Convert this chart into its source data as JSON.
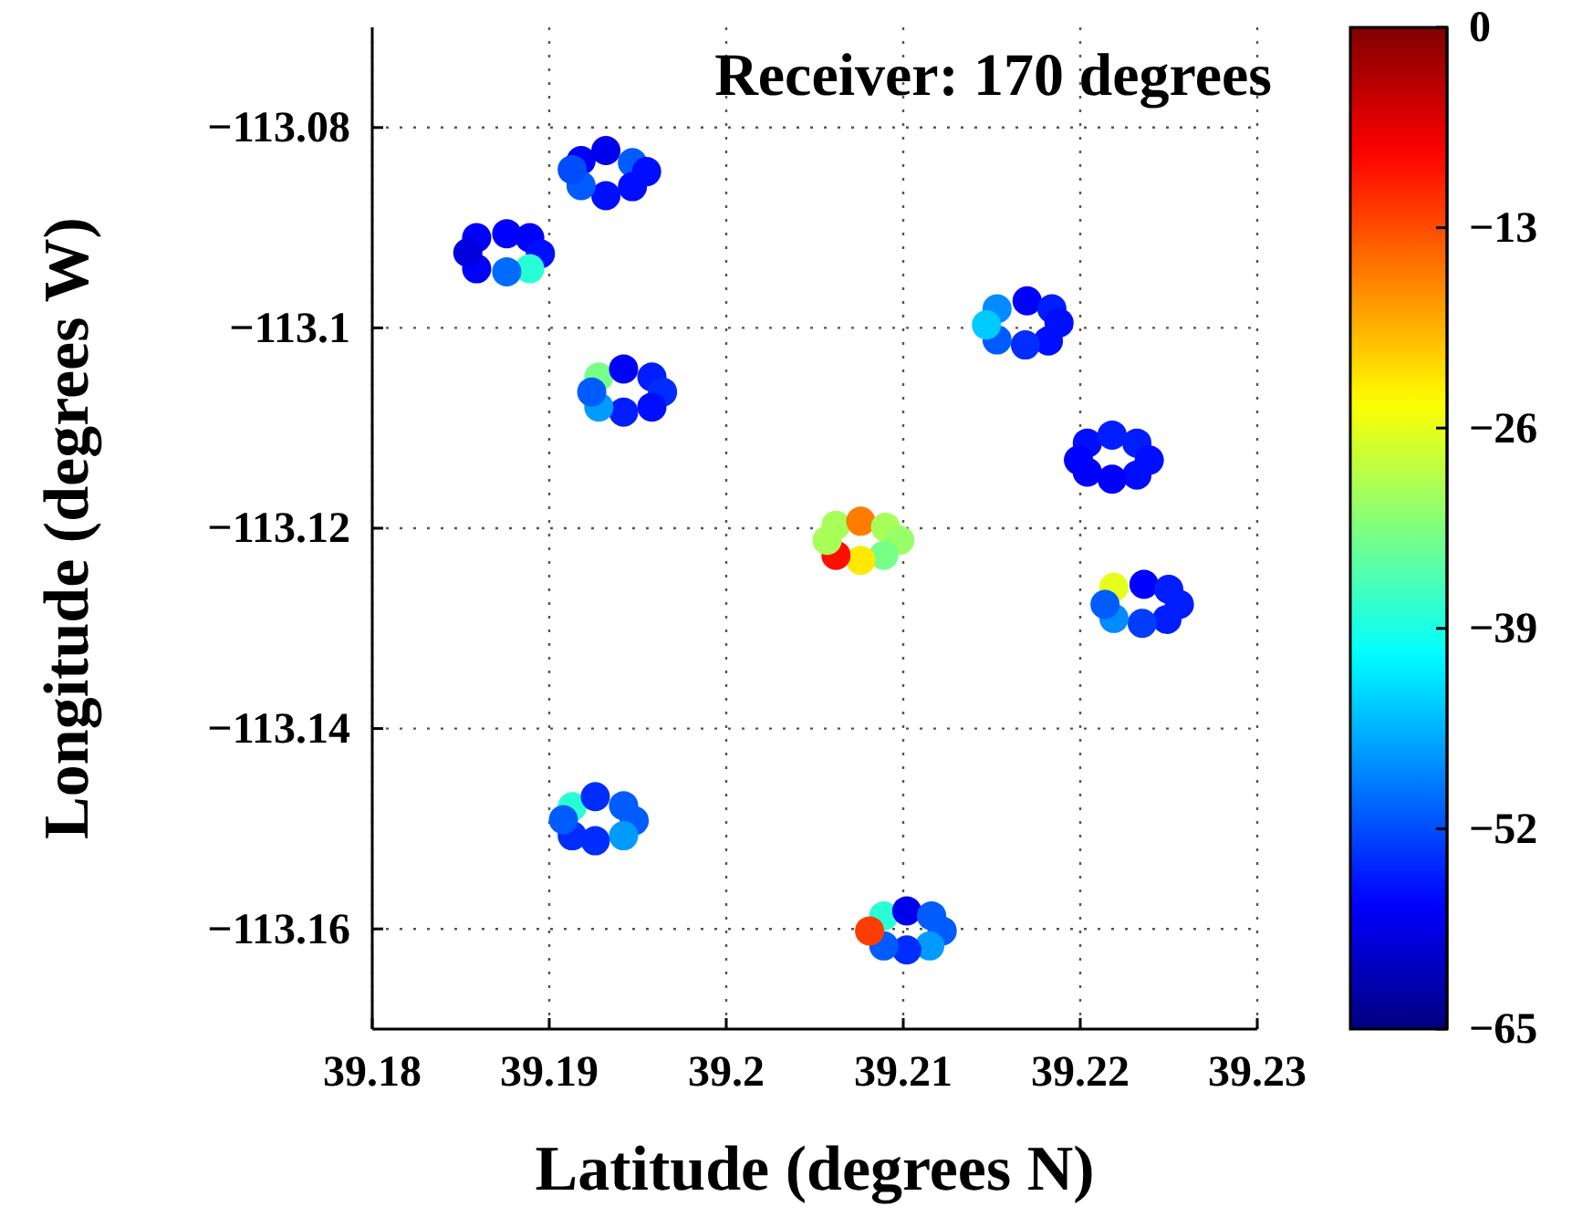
{
  "chart_data": {
    "type": "scatter",
    "title": "Receiver: 170 degrees",
    "xlabel": "Latitude (degrees N)",
    "ylabel": "Longitude (degrees W)",
    "x": [
      39.1918,
      39.1932,
      39.1947,
      39.1955,
      39.1947,
      39.1932,
      39.1918,
      39.1913,
      39.1859,
      39.1876,
      39.1889,
      39.1895,
      39.1889,
      39.1876,
      39.1859,
      39.1854,
      39.1928,
      39.1942,
      39.1958,
      39.1964,
      39.1958,
      39.1942,
      39.1928,
      39.1924,
      39.2153,
      39.217,
      39.2184,
      39.2188,
      39.2182,
      39.2169,
      39.2153,
      39.2147,
      39.2204,
      39.2218,
      39.2232,
      39.2239,
      39.2232,
      39.2218,
      39.2204,
      39.2199,
      39.2219,
      39.2236,
      39.225,
      39.2256,
      39.2249,
      39.2235,
      39.2219,
      39.2214,
      39.2062,
      39.2076,
      39.209,
      39.2098,
      39.2089,
      39.2076,
      39.2062,
      39.2057,
      39.1913,
      39.1926,
      39.1942,
      39.1948,
      39.1942,
      39.1926,
      39.1913,
      39.1908,
      39.2089,
      39.2102,
      39.2116,
      39.2122,
      39.2115,
      39.2102,
      39.2089,
      39.2081
    ],
    "values": [
      -113.0833,
      -113.0823,
      -113.0835,
      -113.0844,
      -113.0859,
      -113.0868,
      -113.0858,
      -113.0842,
      -113.091,
      -113.0906,
      -113.091,
      -113.0926,
      -113.0941,
      -113.0944,
      -113.0941,
      -113.0925,
      -113.1049,
      -113.1041,
      -113.1049,
      -113.1064,
      -113.1079,
      -113.1084,
      -113.1079,
      -113.1064,
      -113.0981,
      -113.0973,
      -113.0981,
      -113.0995,
      -113.1013,
      -113.1017,
      -113.1012,
      -113.0997,
      -113.1115,
      -113.1107,
      -113.1115,
      -113.1132,
      -113.1147,
      -113.1151,
      -113.1144,
      -113.1132,
      -113.1259,
      -113.1256,
      -113.1261,
      -113.1276,
      -113.1291,
      -113.1295,
      -113.129,
      -113.1276,
      -113.1197,
      -113.1193,
      -113.1199,
      -113.1212,
      -113.1227,
      -113.1232,
      -113.1227,
      -113.1212,
      -113.1478,
      -113.1468,
      -113.1477,
      -113.1492,
      -113.1507,
      -113.1512,
      -113.1507,
      -113.1491,
      -113.1587,
      -113.1582,
      -113.1587,
      -113.1602,
      -113.1617,
      -113.1621,
      -113.1617,
      -113.1602
    ],
    "cvalues": [
      -57,
      -58,
      -51,
      -56,
      -56,
      -56,
      -51,
      -52,
      -57,
      -57,
      -57,
      -56,
      -38,
      -50,
      -57,
      -59,
      -33,
      -57,
      -55,
      -54,
      -56,
      -55,
      -47,
      -51,
      -48,
      -57,
      -55,
      -56,
      -56,
      -54,
      -51,
      -44,
      -56,
      -55,
      -55,
      -56,
      -56,
      -57,
      -57,
      -57,
      -26,
      -57,
      -55,
      -55,
      -55,
      -53,
      -48,
      -51,
      -30,
      -16,
      -30,
      -31,
      -33,
      -23,
      -9,
      -30,
      -38,
      -54,
      -51,
      -51,
      -47,
      -54,
      -54,
      -51,
      -38,
      -58,
      -51,
      -51,
      -47,
      -54,
      -51,
      -12
    ],
    "xlim": [
      39.18,
      39.23
    ],
    "ylim": [
      -113.17,
      -113.07
    ],
    "xticks": [
      39.18,
      39.19,
      39.2,
      39.21,
      39.22,
      39.23
    ],
    "yticks": [
      {
        "value": -113.16,
        "label": "−113.16"
      },
      {
        "value": -113.14,
        "label": "−113.14"
      },
      {
        "value": -113.12,
        "label": "−113.12"
      },
      {
        "value": -113.1,
        "label": "−113.1"
      },
      {
        "value": -113.08,
        "label": "−113.08"
      }
    ],
    "clim": [
      -65,
      0
    ],
    "cticks": [
      {
        "value": 0,
        "label": "0"
      },
      {
        "value": -13,
        "label": "−13"
      },
      {
        "value": -26,
        "label": "−26"
      },
      {
        "value": -39,
        "label": "−39"
      },
      {
        "value": -52,
        "label": "−52"
      },
      {
        "value": -65,
        "label": "−65"
      }
    ],
    "grid": true,
    "marker": "circle"
  }
}
